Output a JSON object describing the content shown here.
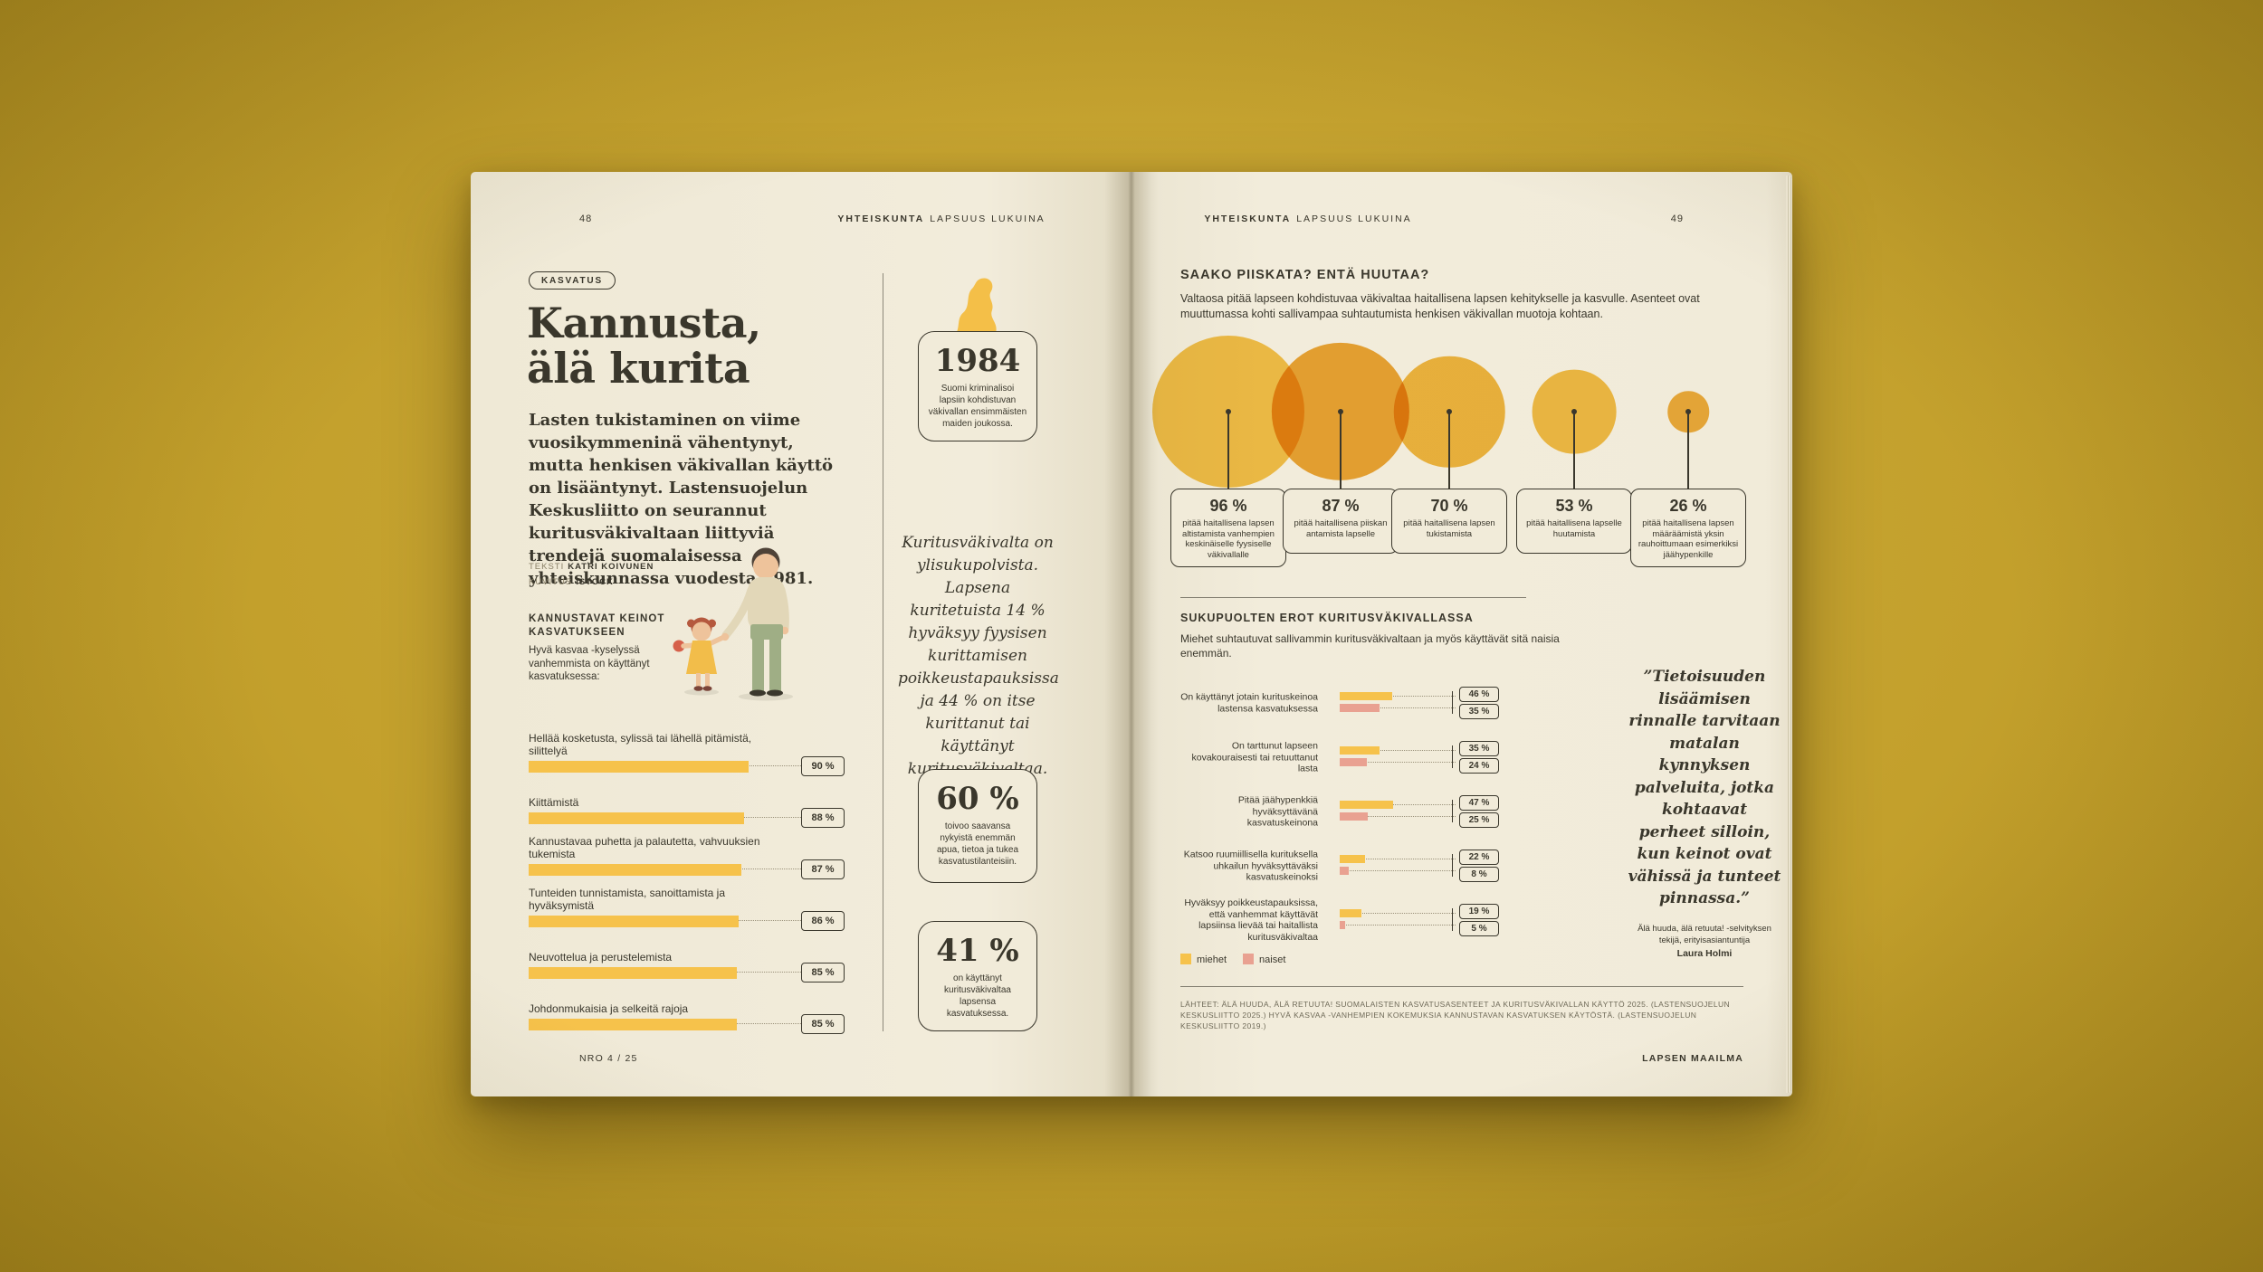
{
  "palette": {
    "desk": "#c3a02c",
    "page": "#f1ebd9",
    "ink": "#3a372c",
    "muted": "#6f6a58",
    "yellow": "#f6c24b",
    "orange": "#efae3c",
    "pink": "#e9a191",
    "leader": "#9a917a"
  },
  "running_header": {
    "bold": "YHTEISKUNTA",
    "rest": "LAPSUUS LUKUINA"
  },
  "left_page": {
    "page_number": "48",
    "tag": "KASVATUS",
    "title_line1": "Kannusta,",
    "title_line2": "älä kurita",
    "intro": "Lasten tukistaminen on viime vuosikymmeninä vähentynyt, mutta henkisen väkivallan käyttö on lisääntynyt. Lastensuojelun Keskusliitto on seurannut kuritusväkivaltaan liittyviä trendejä suomalaisessa yhteiskunnassa vuodesta 1981.",
    "credits": {
      "text_label": "TEKSTI",
      "text_value": "KATRI KOIVUNEN",
      "illo_label": "KUVITUS",
      "illo_value": "ISTOCK"
    },
    "encourage_chart": {
      "heading": "KANNUSTAVAT KEINOT KASVATUKSEEN",
      "sub": "Hyvä kasvaa -kyselyssä vanhemmista on käyttänyt kasvatuksessa:",
      "items": [
        {
          "label": "Hellää kosketusta, sylissä tai lähellä pitämistä, silittelyä",
          "value": 90,
          "pct": "90 %"
        },
        {
          "label": "Kiittämistä",
          "value": 88,
          "pct": "88 %"
        },
        {
          "label": "Kannustavaa puhetta ja palautetta, vahvuuksien tukemista",
          "value": 87,
          "pct": "87 %"
        },
        {
          "label": "Tunteiden tunnistamista, sanoittamista ja hyväksymistä",
          "value": 86,
          "pct": "86 %"
        },
        {
          "label": "Neuvottelua ja perustelemista",
          "value": 85,
          "pct": "85 %"
        },
        {
          "label": "Johdonmukaisia ja selkeitä rajoja",
          "value": 85,
          "pct": "85 %"
        }
      ]
    },
    "sidebar": {
      "year_box": {
        "big": "1984",
        "text": "Suomi kriminalisoi lapsiin kohdistuvan väkivallan ensimmäisten maiden joukossa."
      },
      "quote": "Kuritusväkivalta on ylisukupolvista. Lapsena kuritetuista 14 % hyväksyy fyysisen kurittamisen poikkeustapauksissa ja 44 % on itse kurittanut tai käyttänyt kuritusväkivaltaa.",
      "stats": [
        {
          "big": "60 %",
          "text": "toivoo saavansa nykyistä enemmän apua, tietoa ja tukea kasvatustilanteisiin."
        },
        {
          "big": "41 %",
          "text": "on käyttänyt kuritusväkivaltaa lapsensa kasvatuksessa."
        }
      ]
    },
    "footer": "NRO 4 / 25"
  },
  "right_page": {
    "page_number": "49",
    "heading": "SAAKO PIISKATA? ENTÄ HUUTAA?",
    "sub": "Valtaosa pitää lapseen kohdistuvaa väkivaltaa haitallisena lapsen kehitykselle ja kasvulle. Asenteet ovat muuttumassa kohti sallivampaa suhtautumista henkisen väkivallan muotoja kohtaan.",
    "harm_chart": {
      "items": [
        {
          "pct": "96 %",
          "value": 96,
          "label": "pitää haitallisena lapsen altistamista vanhempien keskinäiselle fyysiselle väkivallalle",
          "color": "#f7c74f"
        },
        {
          "pct": "87 %",
          "value": 87,
          "label": "pitää haitallisena piiskan antamista lapselle",
          "color": "#efab38"
        },
        {
          "pct": "70 %",
          "value": 70,
          "label": "pitää haitallisena lapsen tukistamista",
          "color": "#f4bd45"
        },
        {
          "pct": "53 %",
          "value": 53,
          "label": "pitää haitallisena lapselle huutamista",
          "color": "#f6c44c"
        },
        {
          "pct": "26 %",
          "value": 26,
          "label": "pitää haitallisena lapsen määräämistä yksin rauhoittumaan esimerkiksi jäähypenkille",
          "color": "#f1b240"
        }
      ]
    },
    "gender_chart": {
      "heading": "SUKUPUOLTEN EROT KURITUSVÄKIVALLASSA",
      "sub": "Miehet suhtautuvat sallivammin kuritusväkivaltaan ja myös käyttävät sitä naisia enemmän.",
      "rows": [
        {
          "label": "On käyttänyt jotain kurituskeinoa lastensa kasvatuksessa",
          "men": 46,
          "women": 35,
          "men_pct": "46 %",
          "women_pct": "35 %"
        },
        {
          "label": "On tarttunut lapseen kovakouraisesti tai retuuttanut lasta",
          "men": 35,
          "women": 24,
          "men_pct": "35 %",
          "women_pct": "24 %"
        },
        {
          "label": "Pitää jäähypenkkiä hyväksyttävänä kasvatuskeinona",
          "men": 47,
          "women": 25,
          "men_pct": "47 %",
          "women_pct": "25 %"
        },
        {
          "label": "Katsoo ruumiillisella kurituksella uhkailun hyväksyttäväksi kasvatuskeinoksi",
          "men": 22,
          "women": 8,
          "men_pct": "22 %",
          "women_pct": "8 %"
        },
        {
          "label": "Hyväksyy poikkeustapauksissa, että vanhemmat käyttävät lapsiinsa lievää tai haitallista kuritusväkivaltaa",
          "men": 19,
          "women": 5,
          "men_pct": "19 %",
          "women_pct": "5 %"
        }
      ],
      "legend": [
        {
          "label": "miehet",
          "color": "#f6c24b"
        },
        {
          "label": "naiset",
          "color": "#e9a191"
        }
      ]
    },
    "quote": {
      "text": "”Tietoisuuden lisäämisen rinnalle tarvitaan matalan kynnyksen palveluita, jotka kohtaavat perheet silloin, kun keinot ovat vähissä ja tunteet pinnassa.”",
      "attribution": "Älä huuda, älä retuuta! -selvityksen tekijä, erityisasiantuntija",
      "name": "Laura Holmi"
    },
    "sources": "LÄHTEET: ÄLÄ HUUDA, ÄLÄ RETUUTA! SUOMALAISTEN KASVATUSASENTEET JA KURITUSVÄKIVALLAN KÄYTTÖ 2025. (LASTENSUOJELUN KESKUSLIITTO 2025.) HYVÄ KASVAA -VANHEMPIEN KOKEMUKSIA KANNUSTAVAN KASVATUKSEN KÄYTÖSTÄ. (LASTENSUOJELUN KESKUSLIITTO 2019.)",
    "footer": "LAPSEN MAAILMA"
  },
  "chart_data": [
    {
      "type": "bar",
      "title": "KANNUSTAVAT KEINOT KASVATUKSEEN",
      "categories": [
        "Hellää kosketusta, sylissä tai lähellä pitämistä, silittelyä",
        "Kiittämistä",
        "Kannustavaa puhetta ja palautetta, vahvuuksien tukemista",
        "Tunteiden tunnistamista, sanoittamista ja hyväksymistä",
        "Neuvottelua ja perustelemista",
        "Johdonmukaisia ja selkeitä rajoja"
      ],
      "values": [
        90,
        88,
        87,
        86,
        85,
        85
      ],
      "xlabel": "",
      "ylabel": "%",
      "ylim": [
        0,
        100
      ],
      "legend_position": "none"
    },
    {
      "type": "bar",
      "title": "SAAKO PIISKATA? ENTÄ HUUTAA?",
      "style_hint": "proportional circles",
      "categories": [
        "lapsen altistaminen vanhempien keskinäiselle fyysiselle väkivallalle",
        "piiskan antaminen lapselle",
        "lapsen tukistaminen",
        "lapselle huutaminen",
        "lapsen määrääminen yksin rauhoittumaan esimerkiksi jäähypenkille"
      ],
      "values": [
        96,
        87,
        70,
        53,
        26
      ],
      "xlabel": "",
      "ylabel": "% pitää haitallisena",
      "ylim": [
        0,
        100
      ],
      "legend_position": "none"
    },
    {
      "type": "bar",
      "title": "SUKUPUOLTEN EROT KURITUSVÄKIVALLASSA",
      "categories": [
        "On käyttänyt jotain kurituskeinoa lastensa kasvatuksessa",
        "On tarttunut lapseen kovakouraisesti tai retuuttanut lasta",
        "Pitää jäähypenkkiä hyväksyttävänä kasvatuskeinona",
        "Katsoo ruumiillisella kurituksella uhkailun hyväksyttäväksi kasvatuskeinoksi",
        "Hyväksyy poikkeustapauksissa, että vanhemmat käyttävät lapsiinsa lievää tai haitallista kuritusväkivaltaa"
      ],
      "series": [
        {
          "name": "miehet",
          "values": [
            46,
            35,
            47,
            22,
            19
          ]
        },
        {
          "name": "naiset",
          "values": [
            35,
            24,
            25,
            8,
            5
          ]
        }
      ],
      "xlabel": "",
      "ylabel": "%",
      "ylim": [
        0,
        50
      ],
      "legend_position": "bottom-left"
    }
  ]
}
